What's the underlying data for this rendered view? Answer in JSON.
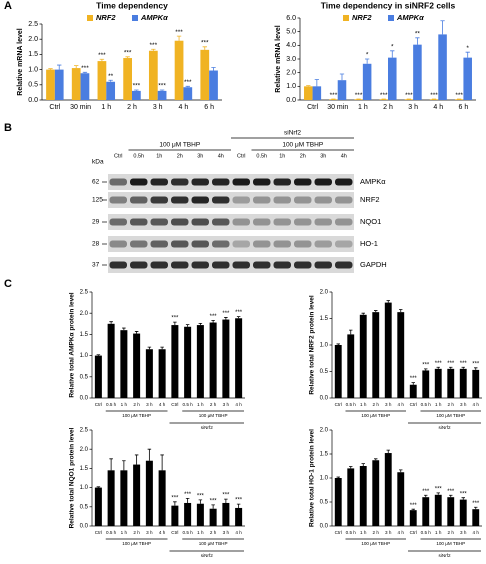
{
  "panels": [
    "A",
    "B",
    "C"
  ],
  "chart_data": [
    {
      "type": "bar",
      "title": "Time dependency",
      "ylabel": "Relative mRNA level",
      "categories": [
        "Ctrl",
        "30 min",
        "1 h",
        "2 h",
        "3 h",
        "4 h",
        "6 h"
      ],
      "ylim": [
        0,
        2.5
      ],
      "yticks": [
        {
          "value": 0,
          "label": "0.0"
        },
        {
          "value": 0.5,
          "label": "0.5"
        },
        {
          "value": 1,
          "label": "1.0"
        },
        {
          "value": 1.5,
          "label": "1.5"
        },
        {
          "value": 2,
          "label": "2.0"
        },
        {
          "value": 2.5,
          "label": "2.5"
        }
      ],
      "series": [
        {
          "name": "NRF2",
          "color": "#f0b323",
          "values": [
            1.0,
            1.05,
            1.28,
            1.38,
            1.62,
            1.95,
            1.65
          ],
          "errors": [
            0.03,
            0.08,
            0.06,
            0.04,
            0.05,
            0.15,
            0.1
          ],
          "stars": [
            null,
            null,
            "***",
            "***",
            "***",
            "***",
            "***"
          ]
        },
        {
          "name": "AMPKα",
          "color": "#4a7de0",
          "values": [
            1.0,
            0.88,
            0.6,
            0.3,
            0.3,
            0.42,
            0.97
          ],
          "errors": [
            0.15,
            0.03,
            0.05,
            0.03,
            0.03,
            0.03,
            0.1
          ],
          "stars": [
            null,
            "***",
            "**",
            "***",
            "***",
            "***",
            null
          ]
        }
      ]
    },
    {
      "type": "bar",
      "title": "Time dependency in siNRF2 cells",
      "ylabel": "Relative mRNA level",
      "categories": [
        "Ctrl",
        "30 min",
        "1 h",
        "2 h",
        "3 h",
        "4 h",
        "6 h"
      ],
      "ylim": [
        0,
        6
      ],
      "yticks": [
        {
          "value": 0,
          "label": "0.0"
        },
        {
          "value": 1,
          "label": "1.0"
        },
        {
          "value": 2,
          "label": "2.0"
        },
        {
          "value": 3,
          "label": "3.0"
        },
        {
          "value": 4,
          "label": "4.0"
        },
        {
          "value": 5,
          "label": "5.0"
        },
        {
          "value": 6,
          "label": "6.0"
        }
      ],
      "series": [
        {
          "name": "NRF2",
          "color": "#f0b323",
          "values": [
            1.0,
            0.05,
            0.05,
            0.05,
            0.05,
            0.05,
            0.05
          ],
          "errors": [
            0.05,
            0.02,
            0.02,
            0.02,
            0.02,
            0.02,
            0.02
          ],
          "stars": [
            null,
            "***",
            "***",
            "***",
            "***",
            "***",
            "***"
          ]
        },
        {
          "name": "AMPKα",
          "color": "#4a7de0",
          "values": [
            1.0,
            1.45,
            2.65,
            3.1,
            4.05,
            4.8,
            3.1
          ],
          "errors": [
            0.5,
            0.45,
            0.35,
            0.5,
            0.5,
            1.0,
            0.4
          ],
          "stars": [
            null,
            null,
            "*",
            "*",
            "**",
            null,
            "*"
          ]
        }
      ]
    },
    {
      "type": "bar",
      "ylabel": "Relative total AMPKα protein level",
      "categories": [
        "Ctrl",
        "0.5 h",
        "1 h",
        "2 h",
        "3 h",
        "4 h",
        "Ctrl",
        "0.5 h",
        "1 h",
        "2 h",
        "3 h",
        "4 h"
      ],
      "groups": [
        "100 μM TBHP",
        "100 μM TBHP",
        "siNrf2"
      ],
      "ylim": [
        0,
        2.5
      ],
      "yticks": [
        {
          "value": 0,
          "label": "0.0"
        },
        {
          "value": 0.5,
          "label": "0.5"
        },
        {
          "value": 1,
          "label": "1.0"
        },
        {
          "value": 1.5,
          "label": "1.5"
        },
        {
          "value": 2,
          "label": "2.0"
        },
        {
          "value": 2.5,
          "label": "2.5"
        }
      ],
      "series": [
        {
          "color": "#000000",
          "values": [
            1.0,
            1.75,
            1.6,
            1.52,
            1.15,
            1.15,
            1.72,
            1.68,
            1.72,
            1.78,
            1.85,
            1.88
          ],
          "errors": [
            0.02,
            0.05,
            0.05,
            0.05,
            0.05,
            0.05,
            0.07,
            0.05,
            0.04,
            0.05,
            0.05,
            0.04
          ],
          "stars": [
            null,
            null,
            null,
            null,
            null,
            null,
            "***",
            null,
            null,
            "***",
            "***",
            "***"
          ]
        }
      ]
    },
    {
      "type": "bar",
      "ylabel": "Relative total NRF2 protein level",
      "categories": [
        "Ctrl",
        "0.5 h",
        "1 h",
        "2 h",
        "3 h",
        "4 h",
        "Ctrl",
        "0.5 h",
        "1 h",
        "2 h",
        "3 h",
        "4 h"
      ],
      "groups": [
        "100 μM TBHP",
        "100 μM TBHP",
        "siNrf2"
      ],
      "ylim": [
        0,
        2
      ],
      "yticks": [
        {
          "value": 0,
          "label": "0.0"
        },
        {
          "value": 0.5,
          "label": "0.5"
        },
        {
          "value": 1,
          "label": "1.0"
        },
        {
          "value": 1.5,
          "label": "1.5"
        },
        {
          "value": 2,
          "label": "2.0"
        }
      ],
      "series": [
        {
          "color": "#000000",
          "values": [
            1.0,
            1.2,
            1.57,
            1.62,
            1.8,
            1.62,
            0.25,
            0.52,
            0.55,
            0.55,
            0.55,
            0.53
          ],
          "errors": [
            0.02,
            0.08,
            0.03,
            0.03,
            0.04,
            0.05,
            0.04,
            0.03,
            0.03,
            0.03,
            0.03,
            0.04
          ],
          "stars": [
            null,
            null,
            null,
            null,
            null,
            null,
            "***",
            "***",
            "***",
            "***",
            "***",
            "***"
          ]
        }
      ]
    },
    {
      "type": "bar",
      "ylabel": "Relative total NQO1 protein level",
      "categories": [
        "Ctrl",
        "0.5 h",
        "1 h",
        "2 h",
        "3 h",
        "4 h",
        "Ctrl",
        "0.5 h",
        "1 h",
        "2 h",
        "3 h",
        "4 h"
      ],
      "groups": [
        "100 μM TBHP",
        "100 μM TBHP",
        "siNrf2"
      ],
      "ylim": [
        0,
        2.5
      ],
      "yticks": [
        {
          "value": 0,
          "label": "0.0"
        },
        {
          "value": 0.5,
          "label": "0.5"
        },
        {
          "value": 1,
          "label": "1.0"
        },
        {
          "value": 1.5,
          "label": "1.5"
        },
        {
          "value": 2,
          "label": "2.0"
        },
        {
          "value": 2.5,
          "label": "2.5"
        }
      ],
      "series": [
        {
          "color": "#000000",
          "values": [
            1.0,
            1.45,
            1.45,
            1.6,
            1.7,
            1.45,
            0.53,
            0.6,
            0.58,
            0.45,
            0.6,
            0.47
          ],
          "errors": [
            0.02,
            0.3,
            0.25,
            0.25,
            0.3,
            0.4,
            0.1,
            0.12,
            0.1,
            0.1,
            0.1,
            0.1
          ],
          "stars": [
            null,
            null,
            null,
            null,
            null,
            null,
            "***",
            "***",
            "***",
            "***",
            "***",
            "***"
          ]
        }
      ]
    },
    {
      "type": "bar",
      "ylabel": "Relative total HO-1 protein level",
      "categories": [
        "Ctrl",
        "0.5 h",
        "1 h",
        "2 h",
        "3 h",
        "4 h",
        "Ctrl",
        "0.5 h",
        "1 h",
        "2 h",
        "3 h",
        "4 h"
      ],
      "groups": [
        "100 μM TBHP",
        "100 μM TBHP",
        "siNrf2"
      ],
      "ylim": [
        0,
        2
      ],
      "yticks": [
        {
          "value": 0,
          "label": "0.0"
        },
        {
          "value": 0.5,
          "label": "0.5"
        },
        {
          "value": 1,
          "label": "1.0"
        },
        {
          "value": 1.5,
          "label": "1.5"
        },
        {
          "value": 2,
          "label": "2.0"
        }
      ],
      "series": [
        {
          "color": "#000000",
          "values": [
            1.0,
            1.2,
            1.25,
            1.37,
            1.52,
            1.12,
            0.33,
            0.6,
            0.65,
            0.6,
            0.55,
            0.35
          ],
          "errors": [
            0.02,
            0.04,
            0.05,
            0.03,
            0.06,
            0.05,
            0.02,
            0.04,
            0.04,
            0.04,
            0.04,
            0.04
          ],
          "stars": [
            null,
            null,
            null,
            null,
            null,
            null,
            "***",
            "***",
            "***",
            "***",
            "***",
            "***"
          ]
        }
      ]
    }
  ],
  "blot": {
    "unit": "kDa",
    "markers": [
      "62",
      "125",
      "29",
      "28",
      "37"
    ],
    "proteins": [
      "AMPKα",
      "NRF2",
      "NQO1",
      "HO-1",
      "GAPDH"
    ],
    "lanes": [
      "Ctrl",
      "0.5h",
      "1h",
      "2h",
      "3h",
      "4h",
      "Ctrl",
      "0.5h",
      "1h",
      "2h",
      "3h",
      "4h"
    ],
    "treatments": [
      "100 μM TBHP",
      "100 μM TBHP",
      "siNrf2"
    ]
  }
}
